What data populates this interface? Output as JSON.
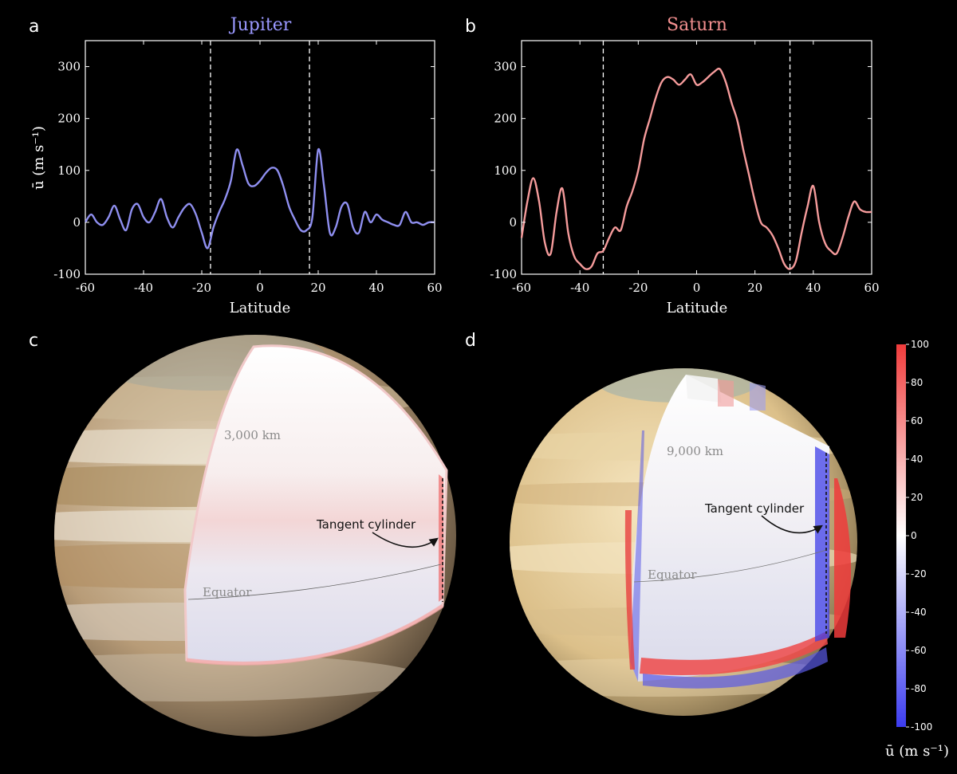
{
  "panels": {
    "a": "a",
    "b": "b",
    "c": "c",
    "d": "d"
  },
  "colors": {
    "jupiter": "#8f8ff0",
    "saturn": "#f59b9b",
    "title_jupiter": "#9a98ff",
    "title_saturn": "#f28f8f"
  },
  "chart_data": [
    {
      "type": "line",
      "title": "Jupiter",
      "xlabel": "Latitude",
      "ylabel": "ū (m s⁻¹)",
      "xlim": [
        -60,
        60
      ],
      "ylim": [
        -100,
        350
      ],
      "xticks": [
        "-60",
        "-40",
        "-20",
        "0",
        "20",
        "40",
        "60"
      ],
      "yticks": [
        "-100",
        "0",
        "100",
        "200",
        "300"
      ],
      "tangent_cylinder_lat": [
        -17,
        17
      ],
      "x": [
        -60,
        -58,
        -56,
        -54,
        -52,
        -50,
        -48,
        -46,
        -44,
        -42,
        -40,
        -38,
        -36,
        -34,
        -32,
        -30,
        -28,
        -26,
        -24,
        -22,
        -20,
        -18,
        -16,
        -14,
        -12,
        -10,
        -8,
        -6,
        -4,
        -2,
        0,
        2,
        4,
        6,
        8,
        10,
        12,
        14,
        16,
        18,
        20,
        22,
        24,
        26,
        28,
        30,
        32,
        34,
        36,
        38,
        40,
        42,
        44,
        46,
        48,
        50,
        52,
        54,
        56,
        58,
        60
      ],
      "y": [
        0,
        15,
        0,
        -5,
        10,
        32,
        5,
        -15,
        25,
        35,
        10,
        0,
        20,
        45,
        10,
        -10,
        10,
        28,
        35,
        15,
        -20,
        -50,
        -10,
        20,
        45,
        80,
        140,
        110,
        75,
        70,
        80,
        95,
        105,
        100,
        70,
        30,
        5,
        -15,
        -15,
        10,
        140,
        70,
        -20,
        -10,
        30,
        35,
        -10,
        -20,
        20,
        0,
        15,
        5,
        0,
        -5,
        -5,
        20,
        0,
        0,
        -5,
        0,
        0
      ]
    },
    {
      "type": "line",
      "title": "Saturn",
      "xlabel": "Latitude",
      "ylabel": "",
      "xlim": [
        -60,
        60
      ],
      "ylim": [
        -100,
        350
      ],
      "xticks": [
        "-60",
        "-40",
        "-20",
        "0",
        "20",
        "40",
        "60"
      ],
      "yticks": [
        "-100",
        "0",
        "100",
        "200",
        "300"
      ],
      "tangent_cylinder_lat": [
        -32,
        32
      ],
      "x": [
        -60,
        -58,
        -56,
        -54,
        -52,
        -50,
        -48,
        -46,
        -44,
        -42,
        -40,
        -38,
        -36,
        -34,
        -32,
        -30,
        -28,
        -26,
        -24,
        -22,
        -20,
        -18,
        -16,
        -14,
        -12,
        -10,
        -8,
        -6,
        -4,
        -2,
        0,
        2,
        4,
        6,
        8,
        10,
        12,
        14,
        16,
        18,
        20,
        22,
        24,
        26,
        28,
        30,
        32,
        34,
        36,
        38,
        40,
        42,
        44,
        46,
        48,
        50,
        52,
        54,
        56,
        58,
        60
      ],
      "y": [
        -30,
        40,
        85,
        40,
        -40,
        -60,
        20,
        65,
        -20,
        -65,
        -80,
        -90,
        -85,
        -60,
        -55,
        -30,
        -10,
        -15,
        30,
        60,
        100,
        160,
        200,
        240,
        270,
        280,
        275,
        265,
        275,
        285,
        265,
        270,
        280,
        290,
        295,
        270,
        230,
        195,
        140,
        90,
        40,
        0,
        -10,
        -25,
        -50,
        -80,
        -90,
        -75,
        -20,
        30,
        70,
        0,
        -40,
        -55,
        -60,
        -30,
        10,
        40,
        25,
        20,
        20
      ]
    }
  ],
  "spheres": {
    "jupiter": {
      "depth_label": "3,000 km",
      "tangent_label": "Tangent cylinder",
      "equator_label": "Equator"
    },
    "saturn": {
      "depth_label": "9,000 km",
      "tangent_label": "Tangent cylinder",
      "equator_label": "Equator"
    }
  },
  "colorbar": {
    "ticks": [
      "100",
      "80",
      "60",
      "40",
      "20",
      "0",
      "-20",
      "-40",
      "-60",
      "-80",
      "-100"
    ],
    "label": "ū (m s⁻¹)",
    "min": -100,
    "max": 100
  }
}
